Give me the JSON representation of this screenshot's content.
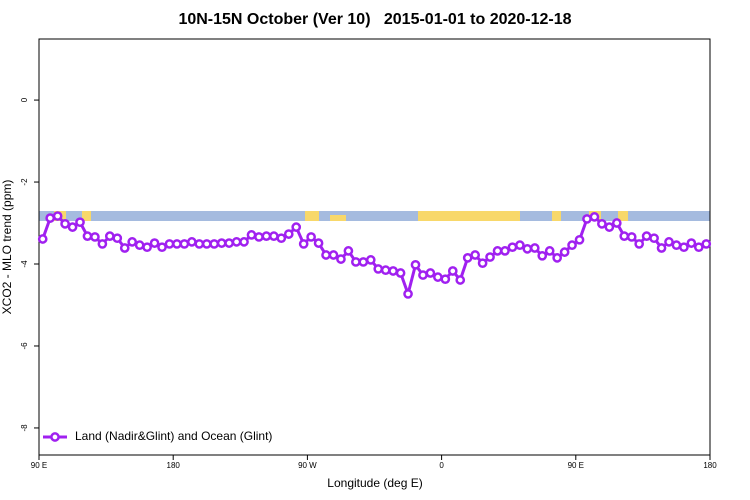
{
  "chart_data": {
    "type": "line",
    "title": "10N-15N October (Ver 10)   2015-01-01 to 2020-12-18",
    "x_label": "Longitude (deg E)",
    "y_label": "XCO2 - MLO trend (ppm)",
    "xlim": [
      90,
      540
    ],
    "ylim": [
      -8.66,
      1.49
    ],
    "xticks": [
      {
        "value": 90,
        "label": "90 E"
      },
      180,
      {
        "value": 270,
        "label": "90 W"
      },
      {
        "value": 360,
        "label": "0"
      },
      {
        "value": 450,
        "label": "90 E"
      },
      {
        "value": 540,
        "label": "180"
      }
    ],
    "yticks": [
      0,
      -2,
      -4,
      -6,
      -8
    ],
    "legend": "bottom-left",
    "x": [
      92.5,
      97.5,
      102.5,
      107.5,
      112.5,
      117.5,
      122.5,
      127.5,
      132.5,
      137.5,
      142.5,
      147.5,
      152.5,
      157.5,
      162.5,
      167.5,
      172.5,
      177.5,
      182.5,
      187.5,
      192.5,
      197.5,
      202.5,
      207.5,
      212.5,
      217.5,
      222.5,
      227.5,
      232.5,
      237.5,
      242.5,
      247.5,
      252.5,
      257.5,
      262.5,
      267.5,
      272.5,
      277.5,
      282.5,
      287.5,
      292.5,
      297.5,
      302.5,
      307.5,
      312.5,
      317.5,
      322.5,
      327.5,
      332.5,
      337.5,
      342.5,
      347.5,
      352.5,
      357.5,
      362.5,
      367.5,
      372.5,
      377.5,
      382.5,
      387.5,
      392.5,
      397.5,
      402.5,
      407.5,
      412.5,
      417.5,
      422.5,
      427.5,
      432.5,
      437.5,
      442.5,
      447.5,
      452.5,
      457.5,
      462.5,
      467.5,
      472.5,
      477.5,
      482.5,
      487.5,
      492.5,
      497.5,
      502.5,
      507.5,
      512.5,
      517.5,
      522.5,
      527.5,
      532.5,
      537.5
    ],
    "series": [
      {
        "name": "Land (Nadir&Glint) and Ocean (Glint)",
        "color": "#a020f0",
        "values": [
          -3.39,
          -2.88,
          -2.83,
          -3.02,
          -3.1,
          -2.98,
          -3.32,
          -3.34,
          -3.51,
          -3.32,
          -3.37,
          -3.61,
          -3.46,
          -3.54,
          -3.59,
          -3.49,
          -3.59,
          -3.51,
          -3.51,
          -3.51,
          -3.46,
          -3.51,
          -3.51,
          -3.51,
          -3.49,
          -3.49,
          -3.46,
          -3.46,
          -3.29,
          -3.34,
          -3.32,
          -3.32,
          -3.37,
          -3.27,
          -3.1,
          -3.51,
          -3.34,
          -3.49,
          -3.78,
          -3.78,
          -3.88,
          -3.68,
          -3.95,
          -3.95,
          -3.9,
          -4.12,
          -4.15,
          -4.17,
          -4.22,
          -4.73,
          -4.02,
          -4.27,
          -4.22,
          -4.32,
          -4.37,
          -4.17,
          -4.39,
          -3.85,
          -3.78,
          -3.98,
          -3.83,
          -3.68,
          -3.68,
          -3.59,
          -3.54,
          -3.63,
          -3.61,
          -3.8,
          -3.68,
          -3.85,
          -3.71,
          -3.54,
          -3.41,
          -2.9,
          -2.85,
          -3.02,
          -3.1,
          -3.0,
          -3.32,
          -3.34,
          -3.51,
          -3.32,
          -3.37,
          -3.61,
          -3.46,
          -3.54,
          -3.59,
          -3.49,
          -3.59,
          -3.51
        ]
      }
    ]
  }
}
